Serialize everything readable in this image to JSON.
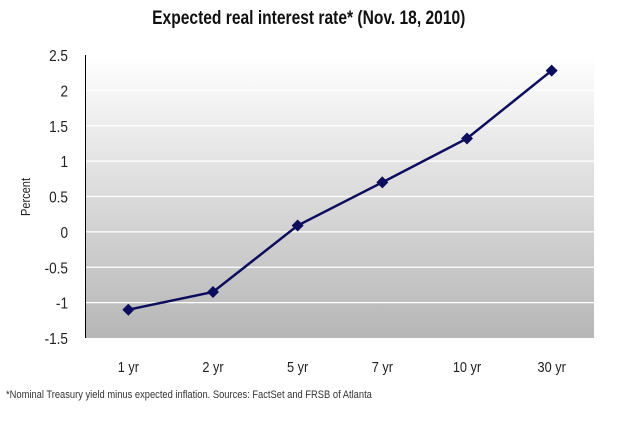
{
  "chart_data": {
    "type": "line",
    "title": "Expected real interest rate* (Nov. 18, 2010)",
    "xlabel": "",
    "ylabel": "Percent",
    "categories": [
      "1 yr",
      "2 yr",
      "5 yr",
      "7 yr",
      "10 yr",
      "30 yr"
    ],
    "series": [
      {
        "name": "Expected real interest rate",
        "values": [
          -1.1,
          -0.85,
          0.09,
          0.7,
          1.32,
          2.28
        ],
        "color": "#0d0d5e"
      }
    ],
    "ylim": [
      -1.5,
      2.5
    ],
    "yticks": [
      2.5,
      2,
      1.5,
      1,
      0.5,
      0,
      -0.5,
      -1,
      -1.5
    ],
    "ytick_labels": [
      "2.5",
      "2",
      "1.5",
      "1",
      "0.5",
      "0",
      "-0.5",
      "-1",
      "-1.5"
    ],
    "grid": true,
    "legend": "none"
  },
  "footnote": "*Nominal Treasury yield minus expected inflation. Sources: FactSet and FRSB of Atlanta"
}
